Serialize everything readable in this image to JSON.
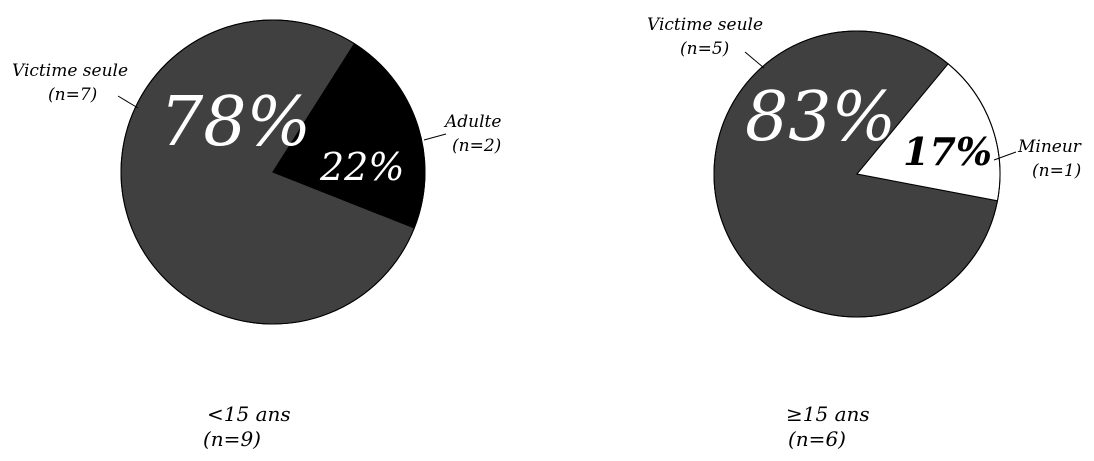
{
  "chart_data": [
    {
      "type": "pie",
      "subtitle": "<15 ans",
      "subtitle_n": "(n=9)",
      "slices": [
        {
          "name": "Victime seule",
          "n_label": "(n=7)",
          "value": 78,
          "pct_label": "78%",
          "color": "#404040"
        },
        {
          "name": "Adulte",
          "n_label": "(n=2)",
          "value": 22,
          "pct_label": "22%",
          "color": "#000000"
        }
      ]
    },
    {
      "type": "pie",
      "subtitle": "≥15 ans",
      "subtitle_n": "(n=6)",
      "slices": [
        {
          "name": "Victime seule",
          "n_label": "(n=5)",
          "value": 83,
          "pct_label": "83%",
          "color": "#404040"
        },
        {
          "name": "Mineur",
          "n_label": "(n=1)",
          "value": 17,
          "pct_label": "17%",
          "color": "#ffffff"
        }
      ]
    }
  ]
}
